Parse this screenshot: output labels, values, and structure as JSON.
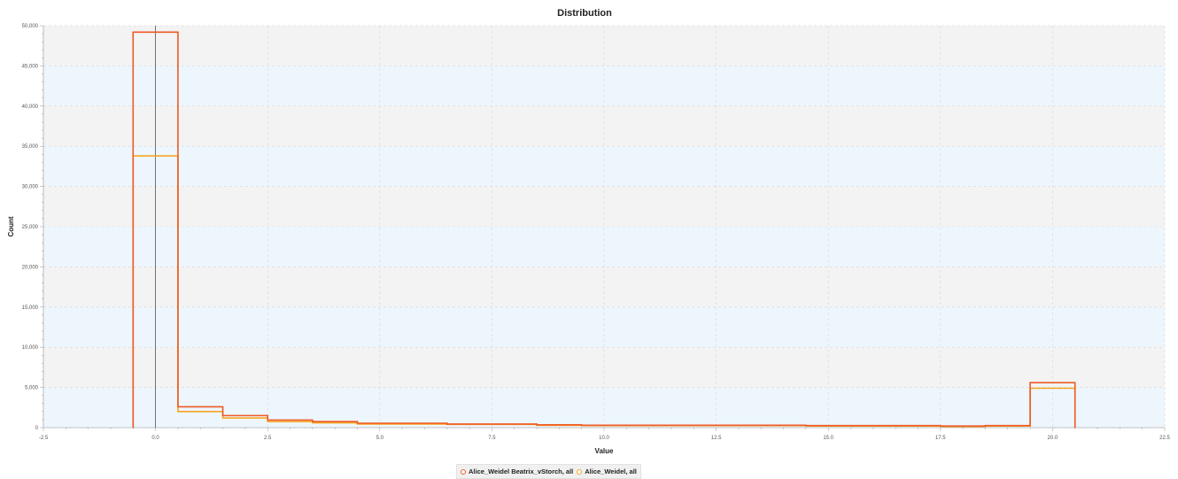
{
  "chart_data": {
    "type": "histogram-step",
    "title": "Distribution",
    "xlabel": "Value",
    "ylabel": "Count",
    "xlim": [
      -2.5,
      22.5
    ],
    "ylim": [
      0,
      50000
    ],
    "x_ticks": [
      "-2.5",
      "0.0",
      "2.5",
      "5.0",
      "7.5",
      "10.0",
      "12.5",
      "15.0",
      "17.5",
      "20.0",
      "22.5"
    ],
    "y_ticks": [
      "0",
      "5,000",
      "10,000",
      "15,000",
      "20,000",
      "25,000",
      "30,000",
      "35,000",
      "40,000",
      "45,000",
      "50,000"
    ],
    "bin_edges": [
      -0.5,
      0.5,
      1.5,
      2.5,
      3.5,
      4.5,
      5.5,
      6.5,
      7.5,
      8.5,
      9.5,
      10.5,
      11.5,
      12.5,
      13.5,
      14.5,
      15.5,
      16.5,
      17.5,
      18.5,
      19.5,
      20.5
    ],
    "series": [
      {
        "name": "Alice_Weidel Beatrix_vStorch, all",
        "color": "#ee5a24",
        "values": [
          49200,
          2600,
          1500,
          950,
          750,
          550,
          550,
          450,
          450,
          350,
          300,
          300,
          300,
          300,
          300,
          250,
          250,
          250,
          200,
          250,
          5600
        ]
      },
      {
        "name": "Alice_Weidel, all",
        "color": "#f5a623",
        "values": [
          33800,
          2000,
          1200,
          750,
          600,
          450,
          450,
          400,
          400,
          300,
          250,
          250,
          250,
          250,
          250,
          200,
          200,
          200,
          150,
          200,
          4900
        ]
      }
    ],
    "zero_line_x": 0,
    "grid": true,
    "legend_position": "bottom-center"
  }
}
